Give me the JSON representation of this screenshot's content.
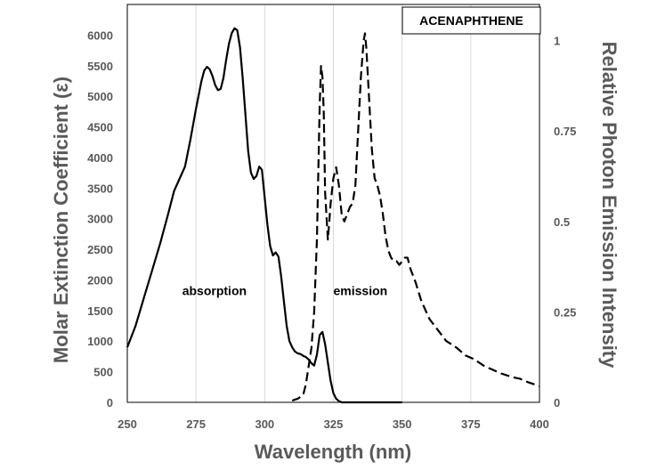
{
  "chart_data": {
    "type": "line",
    "title": "ACENAPHTHENE",
    "xlabel": "Wavelength (nm)",
    "ylabel_left": "Molar Extinction Coefficient  (ε)",
    "ylabel_right": "Relative Photon Emission Intensity",
    "xlim": [
      250,
      400
    ],
    "ylim_left": [
      0,
      6500
    ],
    "ylim_right": [
      0,
      1.1
    ],
    "x_ticks": [
      "250",
      "275",
      "300",
      "325",
      "350",
      "375",
      "400"
    ],
    "y_ticks_left": [
      "0",
      "500",
      "1000",
      "1500",
      "2000",
      "2500",
      "3000",
      "3500",
      "4000",
      "4500",
      "5000",
      "5500",
      "6000"
    ],
    "y_ticks_right": [
      "0",
      "0.25",
      "0.5",
      "0.75",
      "1"
    ],
    "gridlines": "vertical",
    "annotations": [
      {
        "text": "absorption",
        "x": 270,
        "y": 1750
      },
      {
        "text": "emission",
        "x": 325,
        "y": 1750
      }
    ],
    "colors": {
      "line": "#000000",
      "grid": "#d9d9d9",
      "axis_text": "#595959"
    },
    "series": [
      {
        "name": "absorption",
        "axis": "left",
        "style": "solid",
        "x": [
          250,
          253,
          256,
          259,
          262,
          265,
          267,
          269,
          271,
          273,
          275,
          277,
          278,
          279,
          280,
          281,
          282,
          283,
          284,
          285,
          286,
          287,
          288,
          289,
          290,
          291,
          292,
          293,
          294,
          295,
          296,
          297,
          298,
          299,
          300,
          301,
          302,
          303,
          304,
          305,
          306,
          307,
          308,
          309,
          310,
          311,
          312,
          313,
          314,
          315,
          316,
          317,
          318,
          319,
          320,
          321,
          322,
          323,
          324,
          325,
          326,
          327,
          328,
          330,
          335,
          340,
          350
        ],
        "y": [
          900,
          1250,
          1700,
          2150,
          2600,
          3100,
          3450,
          3650,
          3850,
          4300,
          4800,
          5250,
          5420,
          5480,
          5440,
          5330,
          5180,
          5100,
          5120,
          5300,
          5600,
          5860,
          6030,
          6110,
          6080,
          5800,
          5300,
          4700,
          4100,
          3750,
          3650,
          3700,
          3850,
          3800,
          3350,
          2900,
          2550,
          2400,
          2450,
          2380,
          2050,
          1650,
          1250,
          1000,
          900,
          830,
          800,
          790,
          760,
          740,
          700,
          640,
          600,
          780,
          1100,
          1150,
          950,
          650,
          350,
          150,
          60,
          20,
          0,
          0,
          0,
          0,
          0
        ]
      },
      {
        "name": "emission",
        "axis": "right",
        "style": "dashed",
        "x": [
          310,
          312,
          314,
          315,
          316,
          317,
          318,
          319,
          320,
          320.5,
          321,
          321.5,
          322,
          323,
          323.5,
          324,
          325,
          326,
          327,
          328,
          329,
          330,
          331,
          332,
          333,
          334,
          335,
          336,
          336.5,
          337,
          338,
          339,
          340,
          341,
          342,
          343,
          344,
          345,
          346,
          347,
          348,
          349,
          350,
          351,
          352,
          353,
          355,
          357,
          360,
          363,
          366,
          370,
          373,
          376,
          380,
          383,
          386,
          390,
          393,
          396,
          400
        ],
        "y": [
          0.005,
          0.01,
          0.02,
          0.05,
          0.1,
          0.15,
          0.25,
          0.45,
          0.82,
          0.93,
          0.9,
          0.8,
          0.58,
          0.45,
          0.5,
          0.55,
          0.62,
          0.65,
          0.6,
          0.52,
          0.5,
          0.52,
          0.54,
          0.55,
          0.6,
          0.75,
          0.9,
          1.0,
          1.02,
          0.98,
          0.84,
          0.7,
          0.62,
          0.6,
          0.57,
          0.52,
          0.46,
          0.42,
          0.4,
          0.39,
          0.39,
          0.38,
          0.39,
          0.4,
          0.4,
          0.37,
          0.33,
          0.28,
          0.23,
          0.2,
          0.17,
          0.15,
          0.13,
          0.12,
          0.1,
          0.09,
          0.08,
          0.07,
          0.065,
          0.055,
          0.045
        ]
      }
    ]
  }
}
